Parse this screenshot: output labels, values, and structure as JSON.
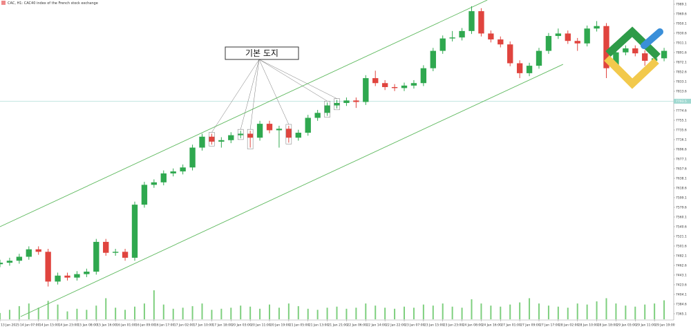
{
  "chart_data": {
    "type": "candlestick",
    "title": "CAC, H1:  CAC40 index of the French stock exchange",
    "annotation": {
      "text": "기본 도지",
      "targets": [
        88,
        100,
        104,
        120,
        136,
        140
      ]
    },
    "current_price": 7793.5,
    "xlim": [
      0,
      280
    ],
    "xticks": [
      {
        "value": 0,
        "label": "13 Jan 2025"
      },
      {
        "value": 8,
        "label": "14 Jan 07:00"
      },
      {
        "value": 16,
        "label": "14 Jan 15:00"
      },
      {
        "value": 24,
        "label": "14 Jan 23:00"
      },
      {
        "value": 32,
        "label": "15 Jan 08:00"
      },
      {
        "value": 40,
        "label": "15 Jan 16:00"
      },
      {
        "value": 48,
        "label": "16 Jan 01:00"
      },
      {
        "value": 56,
        "label": "16 Jan 09:00"
      },
      {
        "value": 64,
        "label": "16 Jan 17:00"
      },
      {
        "value": 72,
        "label": "17 Jan 02:00"
      },
      {
        "value": 80,
        "label": "17 Jan 10:00"
      },
      {
        "value": 88,
        "label": "17 Jan 18:00"
      },
      {
        "value": 96,
        "label": "20 Jan 03:00"
      },
      {
        "value": 104,
        "label": "20 Jan 11:00"
      },
      {
        "value": 112,
        "label": "20 Jan 19:00"
      },
      {
        "value": 120,
        "label": "21 Jan 05:00"
      },
      {
        "value": 128,
        "label": "21 Jan 13:00"
      },
      {
        "value": 136,
        "label": "21 Jan 21:00"
      },
      {
        "value": 144,
        "label": "22 Jan 06:00"
      },
      {
        "value": 152,
        "label": "22 Jan 14:00"
      },
      {
        "value": 160,
        "label": "22 Jan 22:00"
      },
      {
        "value": 168,
        "label": "23 Jan 07:00"
      },
      {
        "value": 176,
        "label": "23 Jan 15:00"
      },
      {
        "value": 184,
        "label": "23 Jan 23:00"
      },
      {
        "value": 192,
        "label": "24 Jan 08:00"
      },
      {
        "value": 200,
        "label": "24 Jan 16:00"
      },
      {
        "value": 208,
        "label": "27 Jan 01:00"
      },
      {
        "value": 216,
        "label": "27 Jan 09:00"
      },
      {
        "value": 224,
        "label": "27 Jan 17:00"
      },
      {
        "value": 232,
        "label": "28 Jan 02:00"
      },
      {
        "value": 240,
        "label": "28 Jan 10:00"
      },
      {
        "value": 248,
        "label": "28 Jan 18:00"
      },
      {
        "value": 256,
        "label": "29 Jan 03:00"
      },
      {
        "value": 264,
        "label": "29 Jan 11:00"
      },
      {
        "value": 272,
        "label": "29 Jan 19:00"
      }
    ],
    "ylim": [
      7353.9,
      7997.5
    ],
    "yticks": [
      7989.1,
      7969.6,
      7950.1,
      7930.6,
      7911.1,
      7891.6,
      7872.1,
      7852.6,
      7833.1,
      7813.6,
      7794.1,
      7774.6,
      7755.1,
      7735.6,
      7716.1,
      7696.6,
      7677.1,
      7657.6,
      7638.1,
      7618.6,
      7599.1,
      7579.6,
      7560.1,
      7540.6,
      7521.1,
      7501.6,
      7482.1,
      7462.6,
      7443.1,
      7423.6,
      7404.1,
      7384.6,
      7365.1
    ],
    "up_color": "#2fa84f",
    "down_color": "#e0443e",
    "channel_color": "#5cb85c",
    "channels": [
      {
        "x": [
          0,
          202.5
        ],
        "y": [
          7540.6,
          7997.4
        ]
      },
      {
        "x": [
          8.6,
          234
        ],
        "y": [
          7359.5,
          7867.9
        ]
      }
    ],
    "x": [
      0,
      4,
      8,
      12,
      16,
      20,
      24,
      28,
      32,
      36,
      40,
      44,
      48,
      52,
      56,
      60,
      64,
      68,
      72,
      76,
      80,
      84,
      88,
      92,
      96,
      100,
      104,
      108,
      112,
      116,
      120,
      124,
      128,
      132,
      136,
      140,
      144,
      148,
      152,
      156,
      160,
      164,
      168,
      172,
      176,
      180,
      184,
      188,
      192,
      196,
      200,
      204,
      208,
      212,
      216,
      220,
      224,
      228,
      232,
      236,
      240,
      244,
      248,
      252,
      256,
      260,
      264,
      268,
      272,
      276
    ],
    "open": [
      7465,
      7468,
      7472,
      7480,
      7495,
      7490,
      7430,
      7442,
      7438,
      7445,
      7450,
      7510,
      7488,
      7490,
      7478,
      7585,
      7625,
      7630,
      7648,
      7652,
      7660,
      7700,
      7722,
      7712,
      7715,
      7725,
      7728,
      7720,
      7748,
      7735,
      7738,
      7720,
      7730,
      7760,
      7770,
      7785,
      7790,
      7795,
      7792,
      7840,
      7830,
      7822,
      7820,
      7825,
      7830,
      7860,
      7895,
      7920,
      7922,
      7935,
      7975,
      7930,
      7918,
      7908,
      7870,
      7850,
      7865,
      7895,
      7925,
      7930,
      7915,
      7910,
      7940,
      7945,
      7860,
      7892,
      7900,
      7890,
      7875,
      7880
    ],
    "high": [
      7474,
      7478,
      7486,
      7501,
      7501,
      7496,
      7448,
      7448,
      7451,
      7456,
      7516,
      7516,
      7496,
      7496,
      7591,
      7631,
      7636,
      7654,
      7658,
      7666,
      7706,
      7728,
      7728,
      7721,
      7731,
      7734,
      7734,
      7754,
      7754,
      7744,
      7744,
      7736,
      7766,
      7776,
      7791,
      7796,
      7801,
      7801,
      7846,
      7855,
      7836,
      7828,
      7831,
      7836,
      7866,
      7901,
      7926,
      7935,
      7941,
      7985,
      7981,
      7936,
      7924,
      7914,
      7876,
      7871,
      7901,
      7931,
      7940,
      7936,
      7921,
      7946,
      7955,
      7951,
      7898,
      7906,
      7906,
      7896,
      7886,
      7901
    ],
    "low": [
      7459,
      7462,
      7466,
      7474,
      7484,
      7420,
      7424,
      7432,
      7432,
      7439,
      7444,
      7482,
      7482,
      7472,
      7472,
      7579,
      7619,
      7624,
      7642,
      7646,
      7654,
      7694,
      7706,
      7700,
      7709,
      7719,
      7700,
      7714,
      7729,
      7700,
      7710,
      7714,
      7724,
      7754,
      7764,
      7779,
      7784,
      7780,
      7786,
      7824,
      7816,
      7814,
      7814,
      7819,
      7824,
      7854,
      7889,
      7914,
      7916,
      7929,
      7924,
      7912,
      7902,
      7864,
      7840,
      7844,
      7859,
      7889,
      7919,
      7909,
      7895,
      7904,
      7934,
      7840,
      7854,
      7886,
      7884,
      7865,
      7869,
      7874
    ],
    "close": [
      7468,
      7472,
      7480,
      7495,
      7490,
      7430,
      7442,
      7438,
      7445,
      7450,
      7510,
      7488,
      7490,
      7478,
      7585,
      7625,
      7630,
      7648,
      7652,
      7660,
      7700,
      7722,
      7712,
      7715,
      7725,
      7728,
      7720,
      7748,
      7735,
      7738,
      7720,
      7730,
      7760,
      7770,
      7785,
      7790,
      7795,
      7792,
      7840,
      7830,
      7822,
      7820,
      7825,
      7830,
      7860,
      7895,
      7920,
      7922,
      7935,
      7975,
      7930,
      7918,
      7908,
      7870,
      7850,
      7865,
      7895,
      7925,
      7930,
      7915,
      7910,
      7940,
      7945,
      7860,
      7892,
      7900,
      7890,
      7875,
      7880,
      7895
    ],
    "volume": [
      12,
      18,
      25,
      30,
      22,
      35,
      28,
      15,
      20,
      18,
      26,
      40,
      22,
      18,
      24,
      30,
      55,
      28,
      20,
      22,
      25,
      30,
      18,
      20,
      22,
      26,
      24,
      20,
      28,
      22,
      30,
      25,
      20,
      18,
      22,
      24,
      20,
      22,
      30,
      26,
      22,
      20,
      24,
      22,
      28,
      26,
      30,
      24,
      22,
      38,
      30,
      26,
      24,
      28,
      32,
      40,
      30,
      26,
      24,
      22,
      30,
      28,
      34,
      40,
      30,
      26,
      24,
      28,
      30,
      36
    ],
    "volume_color": "#7ecf7e"
  }
}
